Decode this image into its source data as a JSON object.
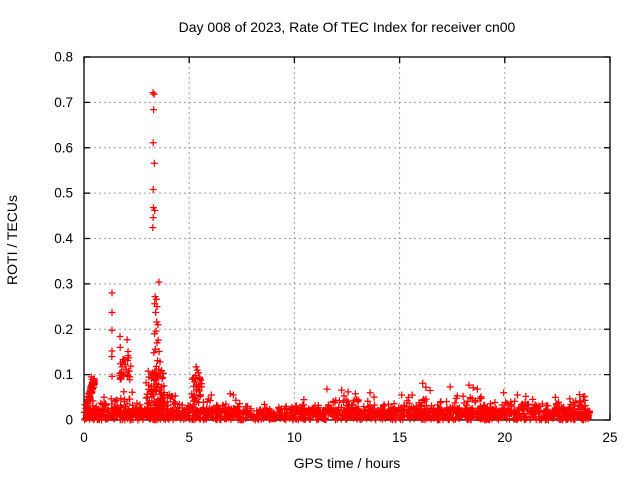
{
  "window": {
    "background": "#ffffff"
  },
  "chart_data": {
    "type": "scatter",
    "title": "Day 008 of 2023, Rate Of TEC Index for receiver cn00",
    "xlabel": "GPS time / hours",
    "ylabel": "ROTI / TECUs",
    "xlim": [
      0,
      25
    ],
    "ylim": [
      0,
      0.8
    ],
    "xticks": [
      0,
      5,
      10,
      15,
      20,
      25
    ],
    "yticks": [
      0,
      0.1,
      0.2,
      0.3,
      0.4,
      0.5,
      0.6,
      0.7,
      0.8
    ],
    "xtick_labels": [
      "0",
      "5",
      "10",
      "15",
      "20",
      "25"
    ],
    "ytick_labels": [
      "0",
      "0.1",
      "0.2",
      "0.3",
      "0.4",
      "0.5",
      "0.6",
      "0.7",
      "0.8"
    ],
    "grid": true,
    "legend": "none",
    "marker": "plus",
    "marker_color": "#ff0000",
    "grid_color": "#9c9c9c",
    "axis_color": "#000000",
    "seed": 42,
    "outliers": [
      [
        1.33,
        0.28
      ],
      [
        1.33,
        0.237
      ],
      [
        1.33,
        0.198
      ],
      [
        1.33,
        0.152
      ],
      [
        1.32,
        0.14
      ],
      [
        1.33,
        0.096
      ],
      [
        1.71,
        0.184
      ],
      [
        1.72,
        0.16
      ],
      [
        2.05,
        0.177
      ],
      [
        2.09,
        0.151
      ],
      [
        1.9,
        0.133
      ],
      [
        1.84,
        0.128
      ],
      [
        1.95,
        0.122
      ],
      [
        1.8,
        0.117
      ],
      [
        2.0,
        0.112
      ],
      [
        2.12,
        0.108
      ],
      [
        1.76,
        0.104
      ],
      [
        1.88,
        0.1
      ],
      [
        2.18,
        0.095
      ],
      [
        3.28,
        0.721
      ],
      [
        3.33,
        0.718
      ],
      [
        3.31,
        0.684
      ],
      [
        3.29,
        0.611
      ],
      [
        3.34,
        0.566
      ],
      [
        3.29,
        0.508
      ],
      [
        3.3,
        0.468
      ],
      [
        3.36,
        0.462
      ],
      [
        3.29,
        0.446
      ],
      [
        3.27,
        0.424
      ],
      [
        3.56,
        0.304
      ],
      [
        3.38,
        0.272
      ],
      [
        3.44,
        0.266
      ],
      [
        3.36,
        0.256
      ],
      [
        3.47,
        0.25
      ],
      [
        3.41,
        0.237
      ],
      [
        3.46,
        0.216
      ],
      [
        3.51,
        0.21
      ],
      [
        3.42,
        0.196
      ],
      [
        3.35,
        0.19
      ],
      [
        3.53,
        0.176
      ],
      [
        3.47,
        0.17
      ],
      [
        3.39,
        0.156
      ],
      [
        3.57,
        0.151
      ],
      [
        3.32,
        0.148
      ],
      [
        3.5,
        0.131
      ],
      [
        3.61,
        0.128
      ],
      [
        3.44,
        0.118
      ],
      [
        3.55,
        0.112
      ],
      [
        3.37,
        0.108
      ],
      [
        3.62,
        0.103
      ],
      [
        3.77,
        0.103
      ],
      [
        3.3,
        0.098
      ],
      [
        5.33,
        0.117
      ],
      [
        5.38,
        0.11
      ],
      [
        5.44,
        0.104
      ],
      [
        5.3,
        0.098
      ],
      [
        5.49,
        0.094
      ],
      [
        5.55,
        0.088
      ],
      [
        5.26,
        0.084
      ],
      [
        5.6,
        0.08
      ],
      [
        0.34,
        0.095
      ],
      [
        0.38,
        0.09
      ],
      [
        0.95,
        0.05
      ],
      [
        4.05,
        0.056
      ],
      [
        4.15,
        0.052
      ],
      [
        6.05,
        0.055
      ],
      [
        6.95,
        0.058
      ],
      [
        7.1,
        0.055
      ],
      [
        10.45,
        0.045
      ],
      [
        11.55,
        0.068
      ],
      [
        12.25,
        0.066
      ],
      [
        12.55,
        0.062
      ],
      [
        12.9,
        0.058
      ],
      [
        13.6,
        0.06
      ],
      [
        15.1,
        0.055
      ],
      [
        15.6,
        0.055
      ],
      [
        16.1,
        0.081
      ],
      [
        16.25,
        0.072
      ],
      [
        16.45,
        0.065
      ],
      [
        17.4,
        0.073
      ],
      [
        18.3,
        0.077
      ],
      [
        18.5,
        0.071
      ],
      [
        18.7,
        0.068
      ],
      [
        19.95,
        0.06
      ],
      [
        20.6,
        0.055
      ],
      [
        21.0,
        0.052
      ],
      [
        22.4,
        0.05
      ],
      [
        23.55,
        0.056
      ],
      [
        23.8,
        0.052
      ]
    ],
    "clusters": [
      {
        "n": 55,
        "h0": 0.16,
        "dh": 0.34,
        "v0": 0.04,
        "dv": 0.048,
        "jitter": 0.011,
        "slant": true
      },
      {
        "n": 18,
        "h0": 1.65,
        "dh": 0.6,
        "v0": 0.085,
        "v1": 0.15
      },
      {
        "n": 50,
        "h0": 3.05,
        "dh": 0.75,
        "v0": 0.03,
        "v1": 0.115
      },
      {
        "n": 26,
        "h0": 5.15,
        "dh": 0.45,
        "v0": 0.035,
        "v1": 0.095
      }
    ],
    "band_segments": [
      [
        0.02,
        0.15,
        0.04,
        70
      ],
      [
        0.15,
        0.55,
        0.05,
        85
      ],
      [
        0.55,
        1.2,
        0.042,
        75
      ],
      [
        1.2,
        1.65,
        0.05,
        75
      ],
      [
        1.65,
        2.3,
        0.065,
        85
      ],
      [
        2.3,
        2.95,
        0.038,
        70
      ],
      [
        2.95,
        3.85,
        0.1,
        115
      ],
      [
        3.85,
        4.35,
        0.055,
        80
      ],
      [
        4.35,
        5.1,
        0.038,
        70
      ],
      [
        5.1,
        5.85,
        0.062,
        85
      ],
      [
        5.85,
        6.6,
        0.05,
        75
      ],
      [
        6.6,
        7.45,
        0.045,
        75
      ],
      [
        7.45,
        7.95,
        0.03,
        60
      ],
      [
        7.95,
        8.2,
        0.012,
        30
      ],
      [
        8.2,
        8.9,
        0.035,
        65
      ],
      [
        8.9,
        9.25,
        0.018,
        38
      ],
      [
        9.25,
        10.2,
        0.032,
        62
      ],
      [
        10.2,
        11.35,
        0.038,
        70
      ],
      [
        11.35,
        12.1,
        0.045,
        75
      ],
      [
        12.1,
        13.0,
        0.062,
        85
      ],
      [
        13.0,
        13.8,
        0.055,
        80
      ],
      [
        13.8,
        14.6,
        0.038,
        70
      ],
      [
        14.6,
        15.25,
        0.036,
        70
      ],
      [
        15.25,
        16.65,
        0.05,
        80
      ],
      [
        16.65,
        17.65,
        0.042,
        75
      ],
      [
        17.65,
        19.25,
        0.055,
        85
      ],
      [
        19.25,
        20.35,
        0.04,
        70
      ],
      [
        20.35,
        21.65,
        0.046,
        75
      ],
      [
        21.65,
        22.85,
        0.04,
        70
      ],
      [
        22.85,
        24.05,
        0.052,
        80
      ]
    ]
  }
}
